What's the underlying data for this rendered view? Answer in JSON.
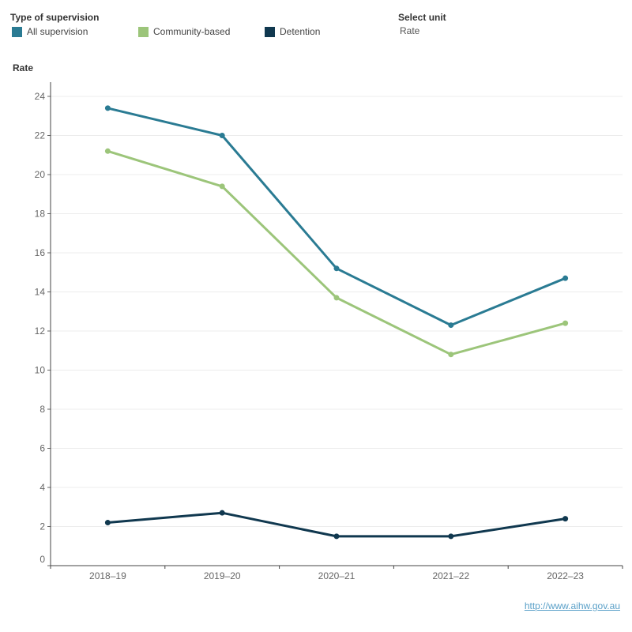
{
  "legend": {
    "title": "Type of supervision",
    "items": [
      {
        "label": "All supervision",
        "color": "#2a7b93"
      },
      {
        "label": "Community-based",
        "color": "#9cc57a"
      },
      {
        "label": "Detention",
        "color": "#10384f"
      }
    ]
  },
  "unit_selector": {
    "title": "Select unit",
    "value": "Rate"
  },
  "footer": {
    "link": "http://www.aihw.gov.au"
  },
  "chart_data": {
    "type": "line",
    "ylabel": "Rate",
    "xlabel": "",
    "categories": [
      "2018–19",
      "2019–20",
      "2020–21",
      "2021–22",
      "2022–23"
    ],
    "ylim": [
      0,
      24
    ],
    "yticks": [
      0,
      2,
      4,
      6,
      8,
      10,
      12,
      14,
      16,
      18,
      20,
      22,
      24
    ],
    "grid": true,
    "legend_position": "top-left",
    "series": [
      {
        "name": "All supervision",
        "color": "#2a7b93",
        "values": [
          23.4,
          22.0,
          15.2,
          12.3,
          14.7
        ]
      },
      {
        "name": "Community-based",
        "color": "#9cc57a",
        "values": [
          21.2,
          19.4,
          13.7,
          10.8,
          12.4
        ]
      },
      {
        "name": "Detention",
        "color": "#10384f",
        "values": [
          2.2,
          2.7,
          1.5,
          1.5,
          2.4
        ]
      }
    ]
  }
}
